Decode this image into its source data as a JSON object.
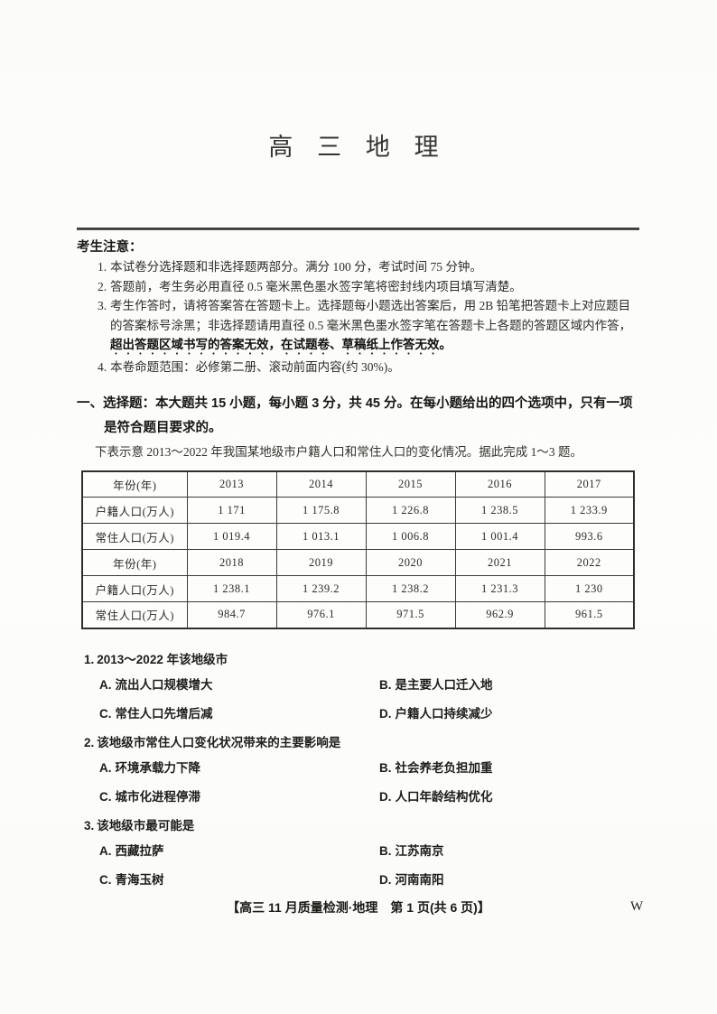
{
  "page": {
    "title": "高 三 地 理"
  },
  "notice": {
    "heading": "考生注意：",
    "items": [
      {
        "num": "1.",
        "text": "本试卷分选择题和非选择题两部分。满分 100 分，考试时间 75 分钟。"
      },
      {
        "num": "2.",
        "text": "答题前，考生务必用直径 0.5 毫米黑色墨水签字笔将密封线内项目填写清楚。"
      },
      {
        "num": "3.",
        "text_start": "考生作答时，请将答案答在答题卡上。选择题每小题选出答案后，用 2B 铅笔把答题卡上对应题目的答案标号涂黑；非选择题请用直径 0.5 毫米黑色墨水签字笔在答题卡上各题的答题区域内作答，",
        "text_emphasis": "超出答题区域书写的答案无效，在试题卷、草稿纸上作答无效。"
      },
      {
        "num": "4.",
        "text": "本卷命题范围：必修第二册、滚动前面内容(约 30%)。"
      }
    ]
  },
  "section": {
    "heading": "一、选择题：本大题共 15 小题，每小题 3 分，共 45 分。在每小题给出的四个选项中，只有一项是符合题目要求的。",
    "intro": "下表示意 2013～2022 年我国某地级市户籍人口和常住人口的变化情况。据此完成 1～3 题。"
  },
  "table": {
    "rows": [
      [
        "年份(年)",
        "2013",
        "2014",
        "2015",
        "2016",
        "2017"
      ],
      [
        "户籍人口(万人)",
        "1 171",
        "1 175.8",
        "1 226.8",
        "1 238.5",
        "1 233.9"
      ],
      [
        "常住人口(万人)",
        "1 019.4",
        "1 013.1",
        "1 006.8",
        "1 001.4",
        "993.6"
      ],
      [
        "年份(年)",
        "2018",
        "2019",
        "2020",
        "2021",
        "2022"
      ],
      [
        "户籍人口(万人)",
        "1 238.1",
        "1 239.2",
        "1 238.2",
        "1 231.3",
        "1 230"
      ],
      [
        "常住人口(万人)",
        "984.7",
        "976.1",
        "971.5",
        "962.9",
        "961.5"
      ]
    ]
  },
  "questions": [
    {
      "num": "1.",
      "stem": "2013～2022 年该地级市",
      "options": [
        {
          "label": "A.",
          "text": "流出人口规模增大"
        },
        {
          "label": "B.",
          "text": "是主要人口迁入地"
        },
        {
          "label": "C.",
          "text": "常住人口先增后减"
        },
        {
          "label": "D.",
          "text": "户籍人口持续减少"
        }
      ]
    },
    {
      "num": "2.",
      "stem": "该地级市常住人口变化状况带来的主要影响是",
      "options": [
        {
          "label": "A.",
          "text": "环境承载力下降"
        },
        {
          "label": "B.",
          "text": "社会养老负担加重"
        },
        {
          "label": "C.",
          "text": "城市化进程停滞"
        },
        {
          "label": "D.",
          "text": "人口年龄结构优化"
        }
      ]
    },
    {
      "num": "3.",
      "stem": "该地级市最可能是",
      "options": [
        {
          "label": "A.",
          "text": "西藏拉萨"
        },
        {
          "label": "B.",
          "text": "江苏南京"
        },
        {
          "label": "C.",
          "text": "青海玉树"
        },
        {
          "label": "D.",
          "text": "河南南阳"
        }
      ]
    }
  ],
  "footer": {
    "text": "【高三 11 月质量检测·地理　第 1 页(共 6 页)】",
    "mark": "W"
  }
}
